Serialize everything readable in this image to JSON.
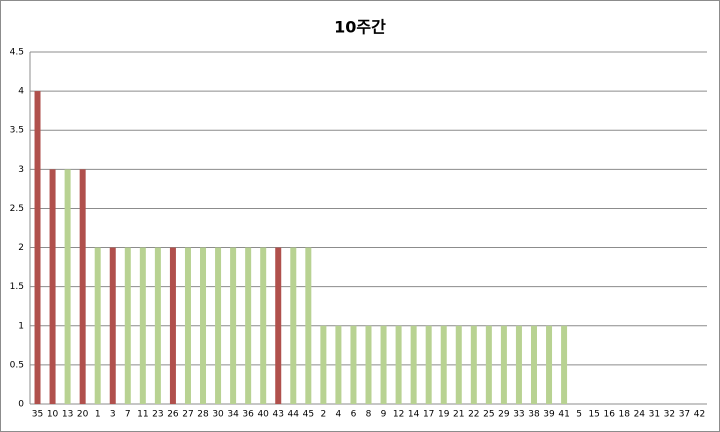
{
  "chart_data": {
    "type": "bar",
    "title": "10주간",
    "categories": [
      "35",
      "10",
      "13",
      "20",
      "1",
      "3",
      "7",
      "11",
      "23",
      "26",
      "27",
      "28",
      "30",
      "34",
      "36",
      "40",
      "43",
      "44",
      "45",
      "2",
      "4",
      "6",
      "8",
      "9",
      "12",
      "14",
      "17",
      "19",
      "21",
      "22",
      "25",
      "29",
      "33",
      "38",
      "39",
      "41",
      "5",
      "15",
      "16",
      "18",
      "24",
      "31",
      "32",
      "37",
      "42"
    ],
    "values": [
      4,
      3,
      3,
      3,
      2,
      2,
      2,
      2,
      2,
      2,
      2,
      2,
      2,
      2,
      2,
      2,
      2,
      2,
      2,
      1,
      1,
      1,
      1,
      1,
      1,
      1,
      1,
      1,
      1,
      1,
      1,
      1,
      1,
      1,
      1,
      1,
      0,
      0,
      0,
      0,
      0,
      0,
      0,
      0,
      0
    ],
    "colors": [
      "#b0504c",
      "#b0504c",
      "#b8d292",
      "#b0504c",
      "#b8d292",
      "#b0504c",
      "#b8d292",
      "#b8d292",
      "#b8d292",
      "#b0504c",
      "#b8d292",
      "#b8d292",
      "#b8d292",
      "#b8d292",
      "#b8d292",
      "#b8d292",
      "#b0504c",
      "#b8d292",
      "#b8d292",
      "#b8d292",
      "#b8d292",
      "#b8d292",
      "#b8d292",
      "#b8d292",
      "#b8d292",
      "#b8d292",
      "#b8d292",
      "#b8d292",
      "#b8d292",
      "#b8d292",
      "#b8d292",
      "#b8d292",
      "#b8d292",
      "#b8d292",
      "#b8d292",
      "#b8d292",
      "#b8d292",
      "#b8d292",
      "#b8d292",
      "#b8d292",
      "#b8d292",
      "#b8d292",
      "#b8d292",
      "#b8d292",
      "#b8d292"
    ],
    "ylim": [
      0,
      4.5
    ],
    "yticks": [
      0,
      0.5,
      1,
      1.5,
      2,
      2.5,
      3,
      3.5,
      4,
      4.5
    ],
    "grid": true
  }
}
